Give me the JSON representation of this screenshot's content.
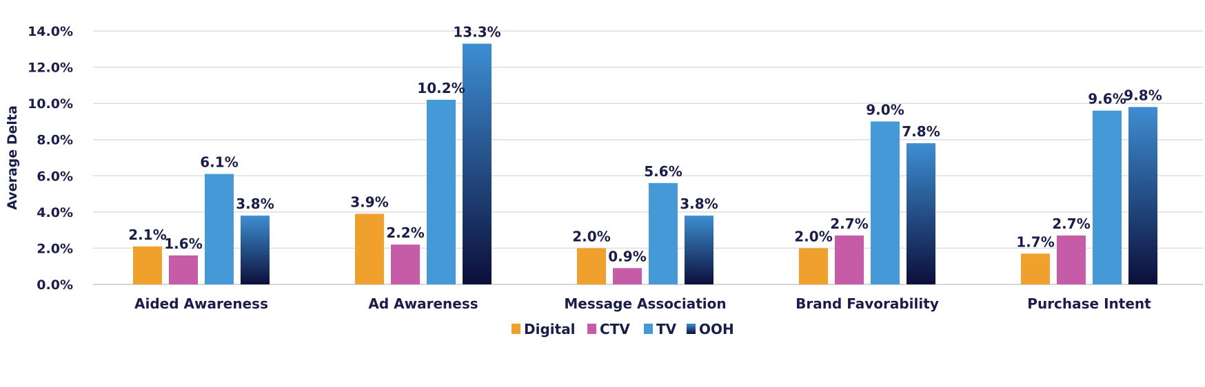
{
  "chart_data": {
    "type": "bar",
    "title": "",
    "xlabel": "",
    "ylabel": "Average Delta",
    "ylim": [
      0,
      14
    ],
    "y_ticks": [
      "0.0%",
      "2.0%",
      "4.0%",
      "6.0%",
      "8.0%",
      "10.0%",
      "12.0%",
      "14.0%"
    ],
    "grid": true,
    "legend_position": "bottom",
    "categories": [
      "Aided Awareness",
      "Ad Awareness",
      "Message Association",
      "Brand Favorability",
      "Purchase Intent"
    ],
    "series": [
      {
        "name": "Digital",
        "color": "#f0a02c",
        "values": [
          2.1,
          3.9,
          2.0,
          2.0,
          1.7
        ],
        "labels": [
          "2.1%",
          "3.9%",
          "2.0%",
          "2.0%",
          "1.7%"
        ]
      },
      {
        "name": "CTV",
        "color": "#c65ca8",
        "values": [
          1.6,
          2.2,
          0.9,
          2.7,
          2.7
        ],
        "labels": [
          "1.6%",
          "2.2%",
          "0.9%",
          "2.7%",
          "2.7%"
        ]
      },
      {
        "name": "TV",
        "color": "#4499d6",
        "values": [
          6.1,
          10.2,
          5.6,
          9.0,
          9.6
        ],
        "labels": [
          "6.1%",
          "10.2%",
          "5.6%",
          "9.0%",
          "9.6%"
        ]
      },
      {
        "name": "OOH",
        "color": "#2a5d96",
        "gradient": [
          "#3d8ed2",
          "#0c0f3a"
        ],
        "values": [
          3.8,
          13.3,
          3.8,
          7.8,
          9.8
        ],
        "labels": [
          "3.8%",
          "13.3%",
          "3.8%",
          "7.8%",
          "9.8%"
        ]
      }
    ]
  }
}
